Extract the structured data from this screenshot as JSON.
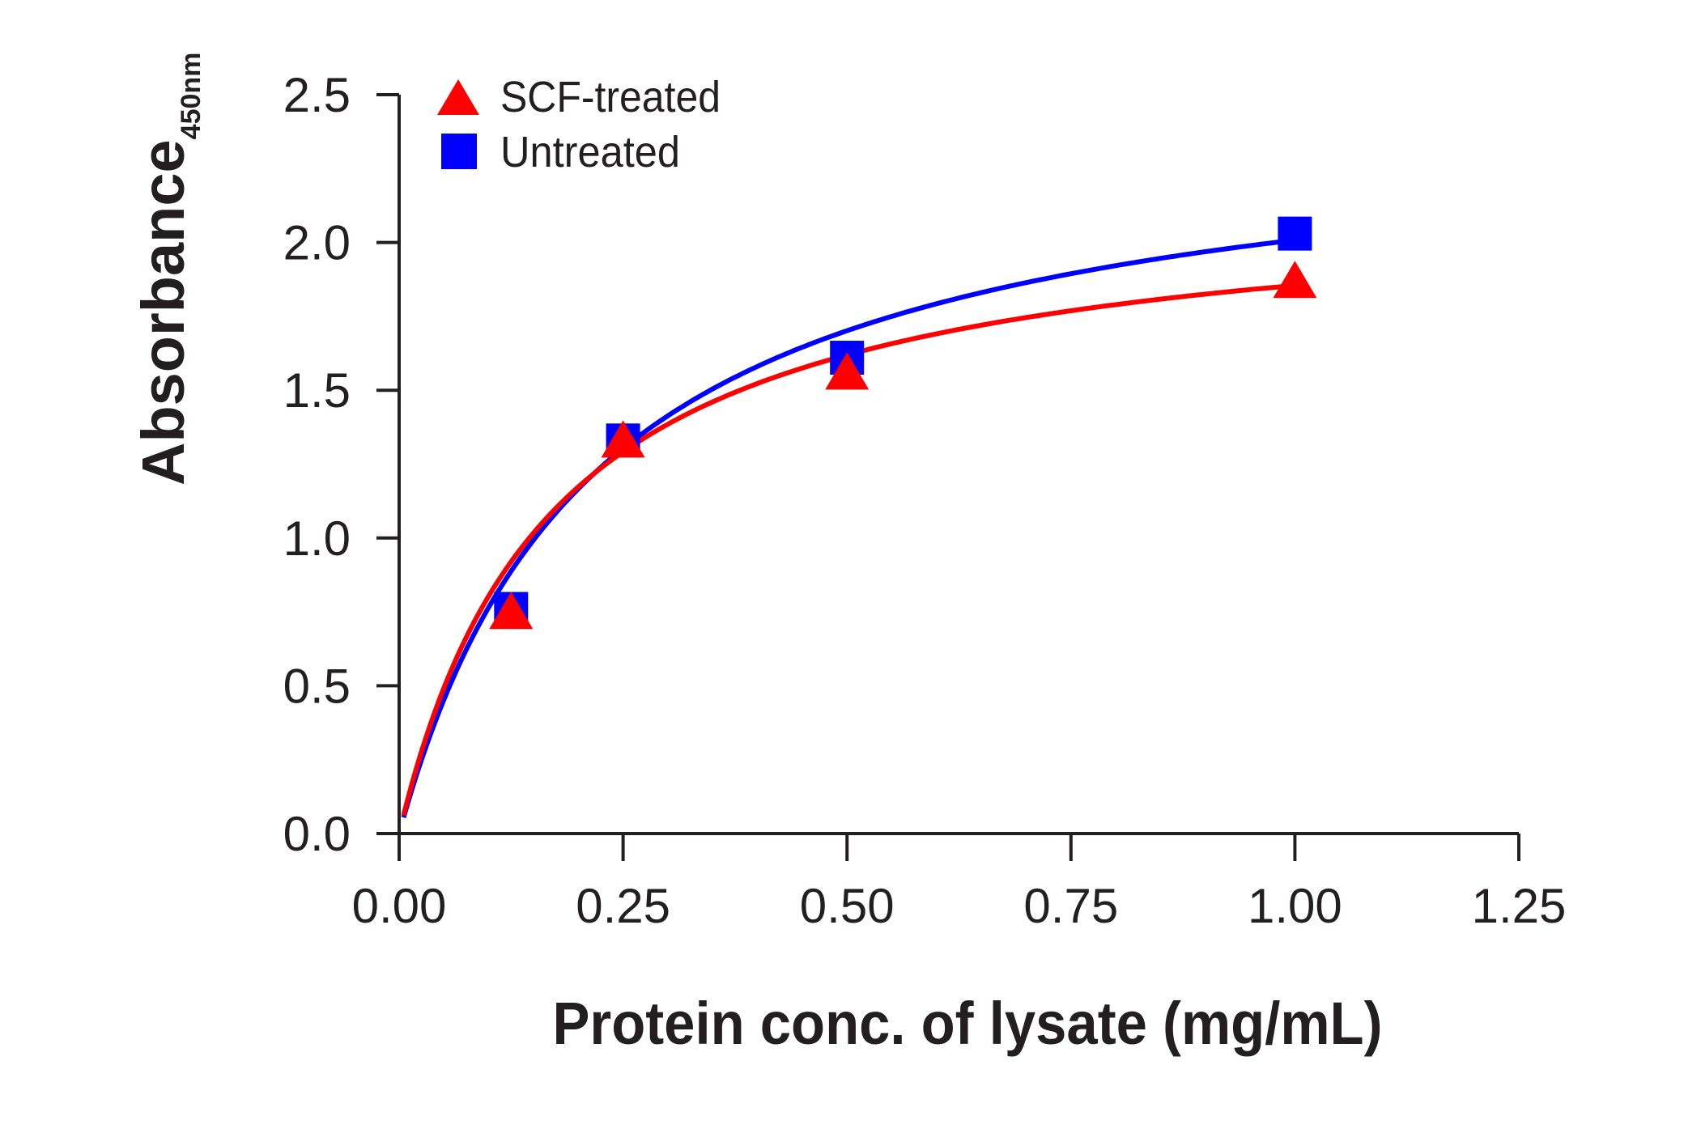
{
  "chart_data": {
    "type": "scatter",
    "title": "",
    "xlabel": "Protein conc. of lysate (mg/mL)",
    "ylabel": "Absorbance",
    "ylabel_subscript": "450nm",
    "xlim": [
      0,
      1.25
    ],
    "ylim": [
      0,
      2.5
    ],
    "xticks": [
      0,
      0.25,
      0.5,
      0.75,
      1.0,
      1.25
    ],
    "xtick_labels": [
      "0.00",
      "0.25",
      "0.50",
      "0.75",
      "1.00",
      "1.25"
    ],
    "yticks": [
      0,
      0.5,
      1.0,
      1.5,
      2.0,
      2.5
    ],
    "ytick_labels": [
      "0.0",
      "0.5",
      "1.0",
      "1.5",
      "2.0",
      "2.5"
    ],
    "grid": false,
    "legend_position": "top-left",
    "fit": "hyperbolic",
    "series": [
      {
        "name": "SCF-treated",
        "marker": "triangle",
        "color": "#ff0000",
        "x": [
          0.125,
          0.25,
          0.5,
          1.0
        ],
        "y": [
          0.74,
          1.32,
          1.55,
          1.86
        ],
        "fit_params": {
          "vmax": 2.17,
          "k": 0.17
        }
      },
      {
        "name": "Untreated",
        "marker": "square",
        "color": "#0000ff",
        "x": [
          0.125,
          0.25,
          0.5,
          1.0
        ],
        "y": [
          0.76,
          1.33,
          1.61,
          2.03
        ],
        "fit_params": {
          "vmax": 2.45,
          "k": 0.22
        }
      }
    ]
  }
}
